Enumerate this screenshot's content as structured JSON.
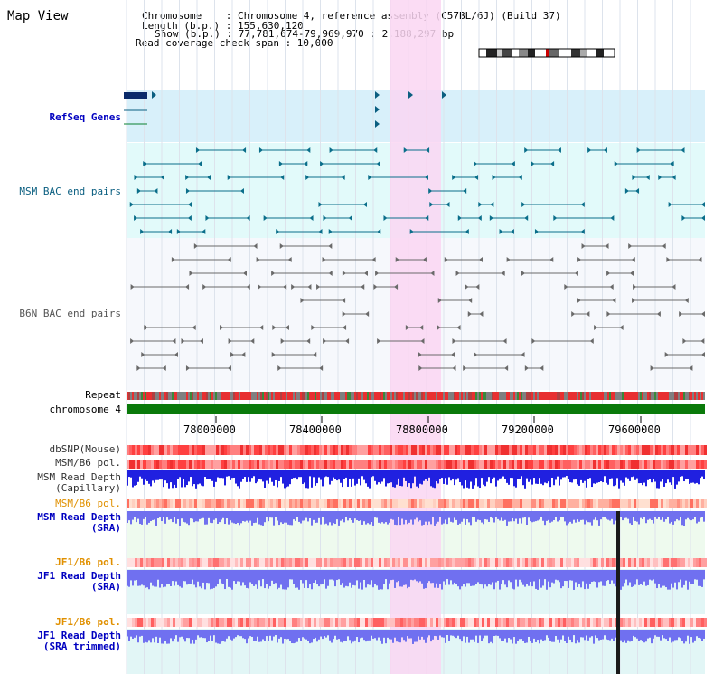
{
  "view_title": "Map View",
  "info": {
    "chromosome": "Chromosome    : Chromosome 4, reference assembly (C57BL/6J) (Build 37)",
    "length": "Length (b.p.) : 155,630,120",
    "show": "Show (b.p.) : 77,781,674-79,969,970 : 2,188,297 bp",
    "coverage": "Read coverage check span : 10,000"
  },
  "tracks": {
    "refseq": "RefSeq Genes",
    "msm_bac": "MSM BAC end pairs",
    "b6n_bac": "B6N BAC end pairs",
    "repeat": "Repeat",
    "chromosome": "chromosome 4",
    "dbsnp": "dbSNP(Mouse)",
    "msm_b6_pol_1": "MSM/B6 pol.",
    "msm_depth_cap": "MSM Read Depth\n(Capillary)",
    "msm_b6_pol_2": "MSM/B6 pol.",
    "msm_depth_sra": "MSM Read Depth\n(SRA)",
    "jf1_b6_pol_1": "JF1/B6 pol.",
    "jf1_depth_sra": "JF1 Read Depth\n(SRA)",
    "jf1_b6_pol_2": "JF1/B6 pol.",
    "jf1_depth_trim": "JF1 Read Depth\n(SRA trimmed)"
  },
  "axis": {
    "ticks": [
      "78000000",
      "78400000",
      "78800000",
      "79200000",
      "79600000"
    ]
  },
  "colors": {
    "highlight": "#fad6f2",
    "refseq_bg": "#d8f0fa",
    "msm_bac_bg": "#e2fafa",
    "b6n_bg": "#ffffff",
    "chrom_bar": "#0a7a0a",
    "label_blue": "#0000c0",
    "label_orange": "#e09000",
    "label_teal": "#0a5e80"
  }
}
